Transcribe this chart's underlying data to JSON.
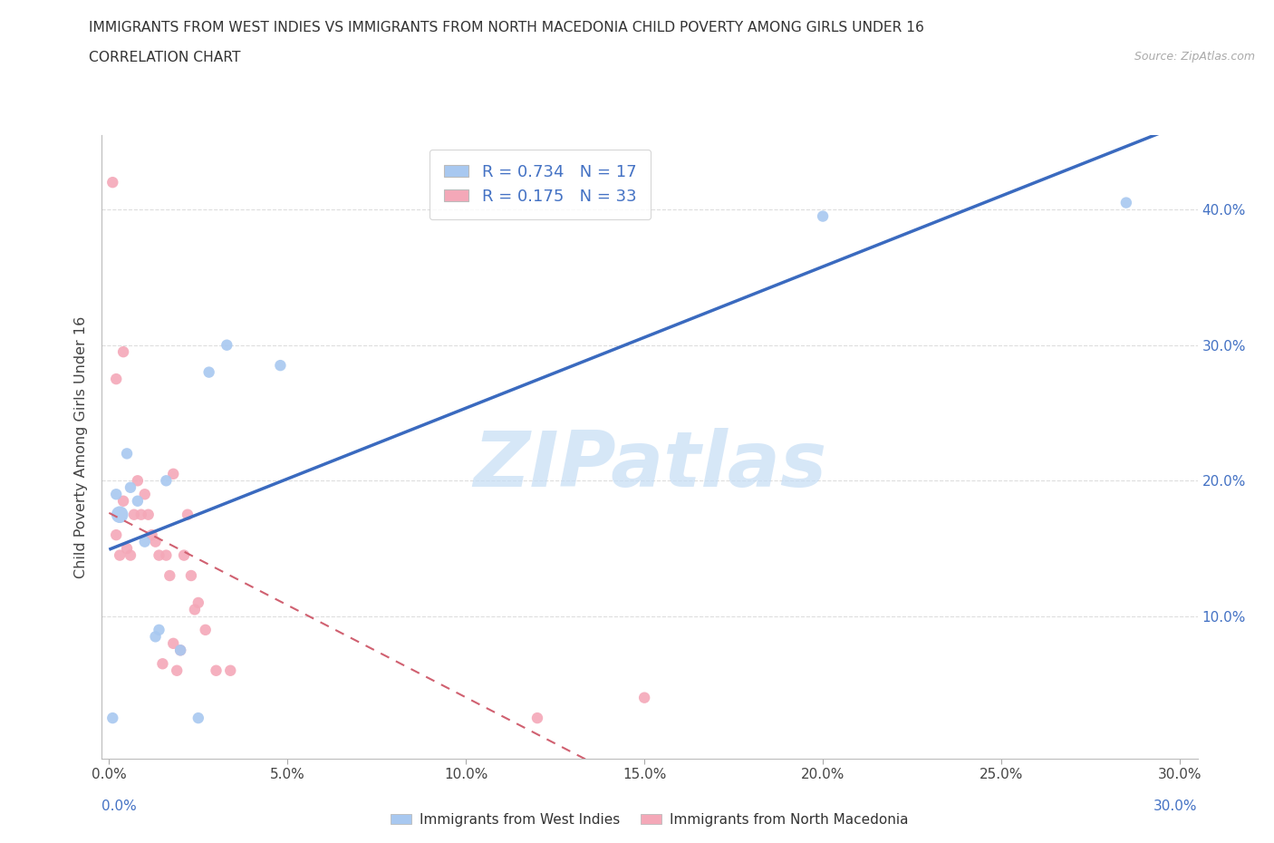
{
  "title_line1": "IMMIGRANTS FROM WEST INDIES VS IMMIGRANTS FROM NORTH MACEDONIA CHILD POVERTY AMONG GIRLS UNDER 16",
  "title_line2": "CORRELATION CHART",
  "source_text": "Source: ZipAtlas.com",
  "ylabel": "Child Poverty Among Girls Under 16",
  "xlabel_west_indies": "Immigrants from West Indies",
  "xlabel_north_macedonia": "Immigrants from North Macedonia",
  "watermark": "ZIPatlas",
  "west_indies_R": 0.734,
  "west_indies_N": 17,
  "north_macedonia_R": 0.175,
  "north_macedonia_N": 33,
  "west_indies_color": "#a8c8f0",
  "north_macedonia_color": "#f4a8b8",
  "west_indies_line_color": "#3a6abf",
  "north_macedonia_line_color": "#d06070",
  "west_indies_x": [
    0.001,
    0.002,
    0.003,
    0.005,
    0.006,
    0.008,
    0.01,
    0.013,
    0.014,
    0.016,
    0.02,
    0.025,
    0.028,
    0.033,
    0.048,
    0.2,
    0.285
  ],
  "west_indies_y": [
    0.025,
    0.19,
    0.175,
    0.22,
    0.195,
    0.185,
    0.155,
    0.085,
    0.09,
    0.2,
    0.075,
    0.025,
    0.28,
    0.3,
    0.285,
    0.395,
    0.405
  ],
  "west_indies_sizes": [
    80,
    80,
    180,
    80,
    80,
    80,
    80,
    80,
    80,
    80,
    80,
    80,
    80,
    80,
    80,
    80,
    80
  ],
  "north_macedonia_x": [
    0.001,
    0.002,
    0.002,
    0.003,
    0.004,
    0.004,
    0.005,
    0.006,
    0.007,
    0.008,
    0.009,
    0.01,
    0.011,
    0.012,
    0.013,
    0.014,
    0.015,
    0.016,
    0.017,
    0.018,
    0.018,
    0.019,
    0.02,
    0.021,
    0.022,
    0.023,
    0.024,
    0.025,
    0.027,
    0.03,
    0.034,
    0.12,
    0.15
  ],
  "north_macedonia_y": [
    0.42,
    0.16,
    0.275,
    0.145,
    0.295,
    0.185,
    0.15,
    0.145,
    0.175,
    0.2,
    0.175,
    0.19,
    0.175,
    0.16,
    0.155,
    0.145,
    0.065,
    0.145,
    0.13,
    0.08,
    0.205,
    0.06,
    0.075,
    0.145,
    0.175,
    0.13,
    0.105,
    0.11,
    0.09,
    0.06,
    0.06,
    0.025,
    0.04
  ],
  "north_macedonia_sizes": [
    80,
    80,
    80,
    80,
    80,
    80,
    80,
    80,
    80,
    80,
    80,
    80,
    80,
    80,
    80,
    80,
    80,
    80,
    80,
    80,
    80,
    80,
    80,
    80,
    80,
    80,
    80,
    80,
    80,
    80,
    80,
    80,
    80
  ],
  "xlim": [
    -0.002,
    0.305
  ],
  "ylim": [
    -0.005,
    0.455
  ],
  "xticks": [
    0.0,
    0.05,
    0.1,
    0.15,
    0.2,
    0.25,
    0.3
  ],
  "yticks": [
    0.1,
    0.2,
    0.3,
    0.4
  ],
  "ytick_labels": [
    "10.0%",
    "20.0%",
    "30.0%",
    "40.0%"
  ],
  "xtick_labels": [
    "0.0%",
    "5.0%",
    "10.0%",
    "15.0%",
    "20.0%",
    "25.0%",
    "30.0%"
  ],
  "grid_color": "#dddddd",
  "grid_style": "--",
  "background_color": "#ffffff",
  "wi_line_x0": 0.0,
  "wi_line_x1": 0.305,
  "nm_line_x0": 0.0,
  "nm_line_x1": 0.305
}
